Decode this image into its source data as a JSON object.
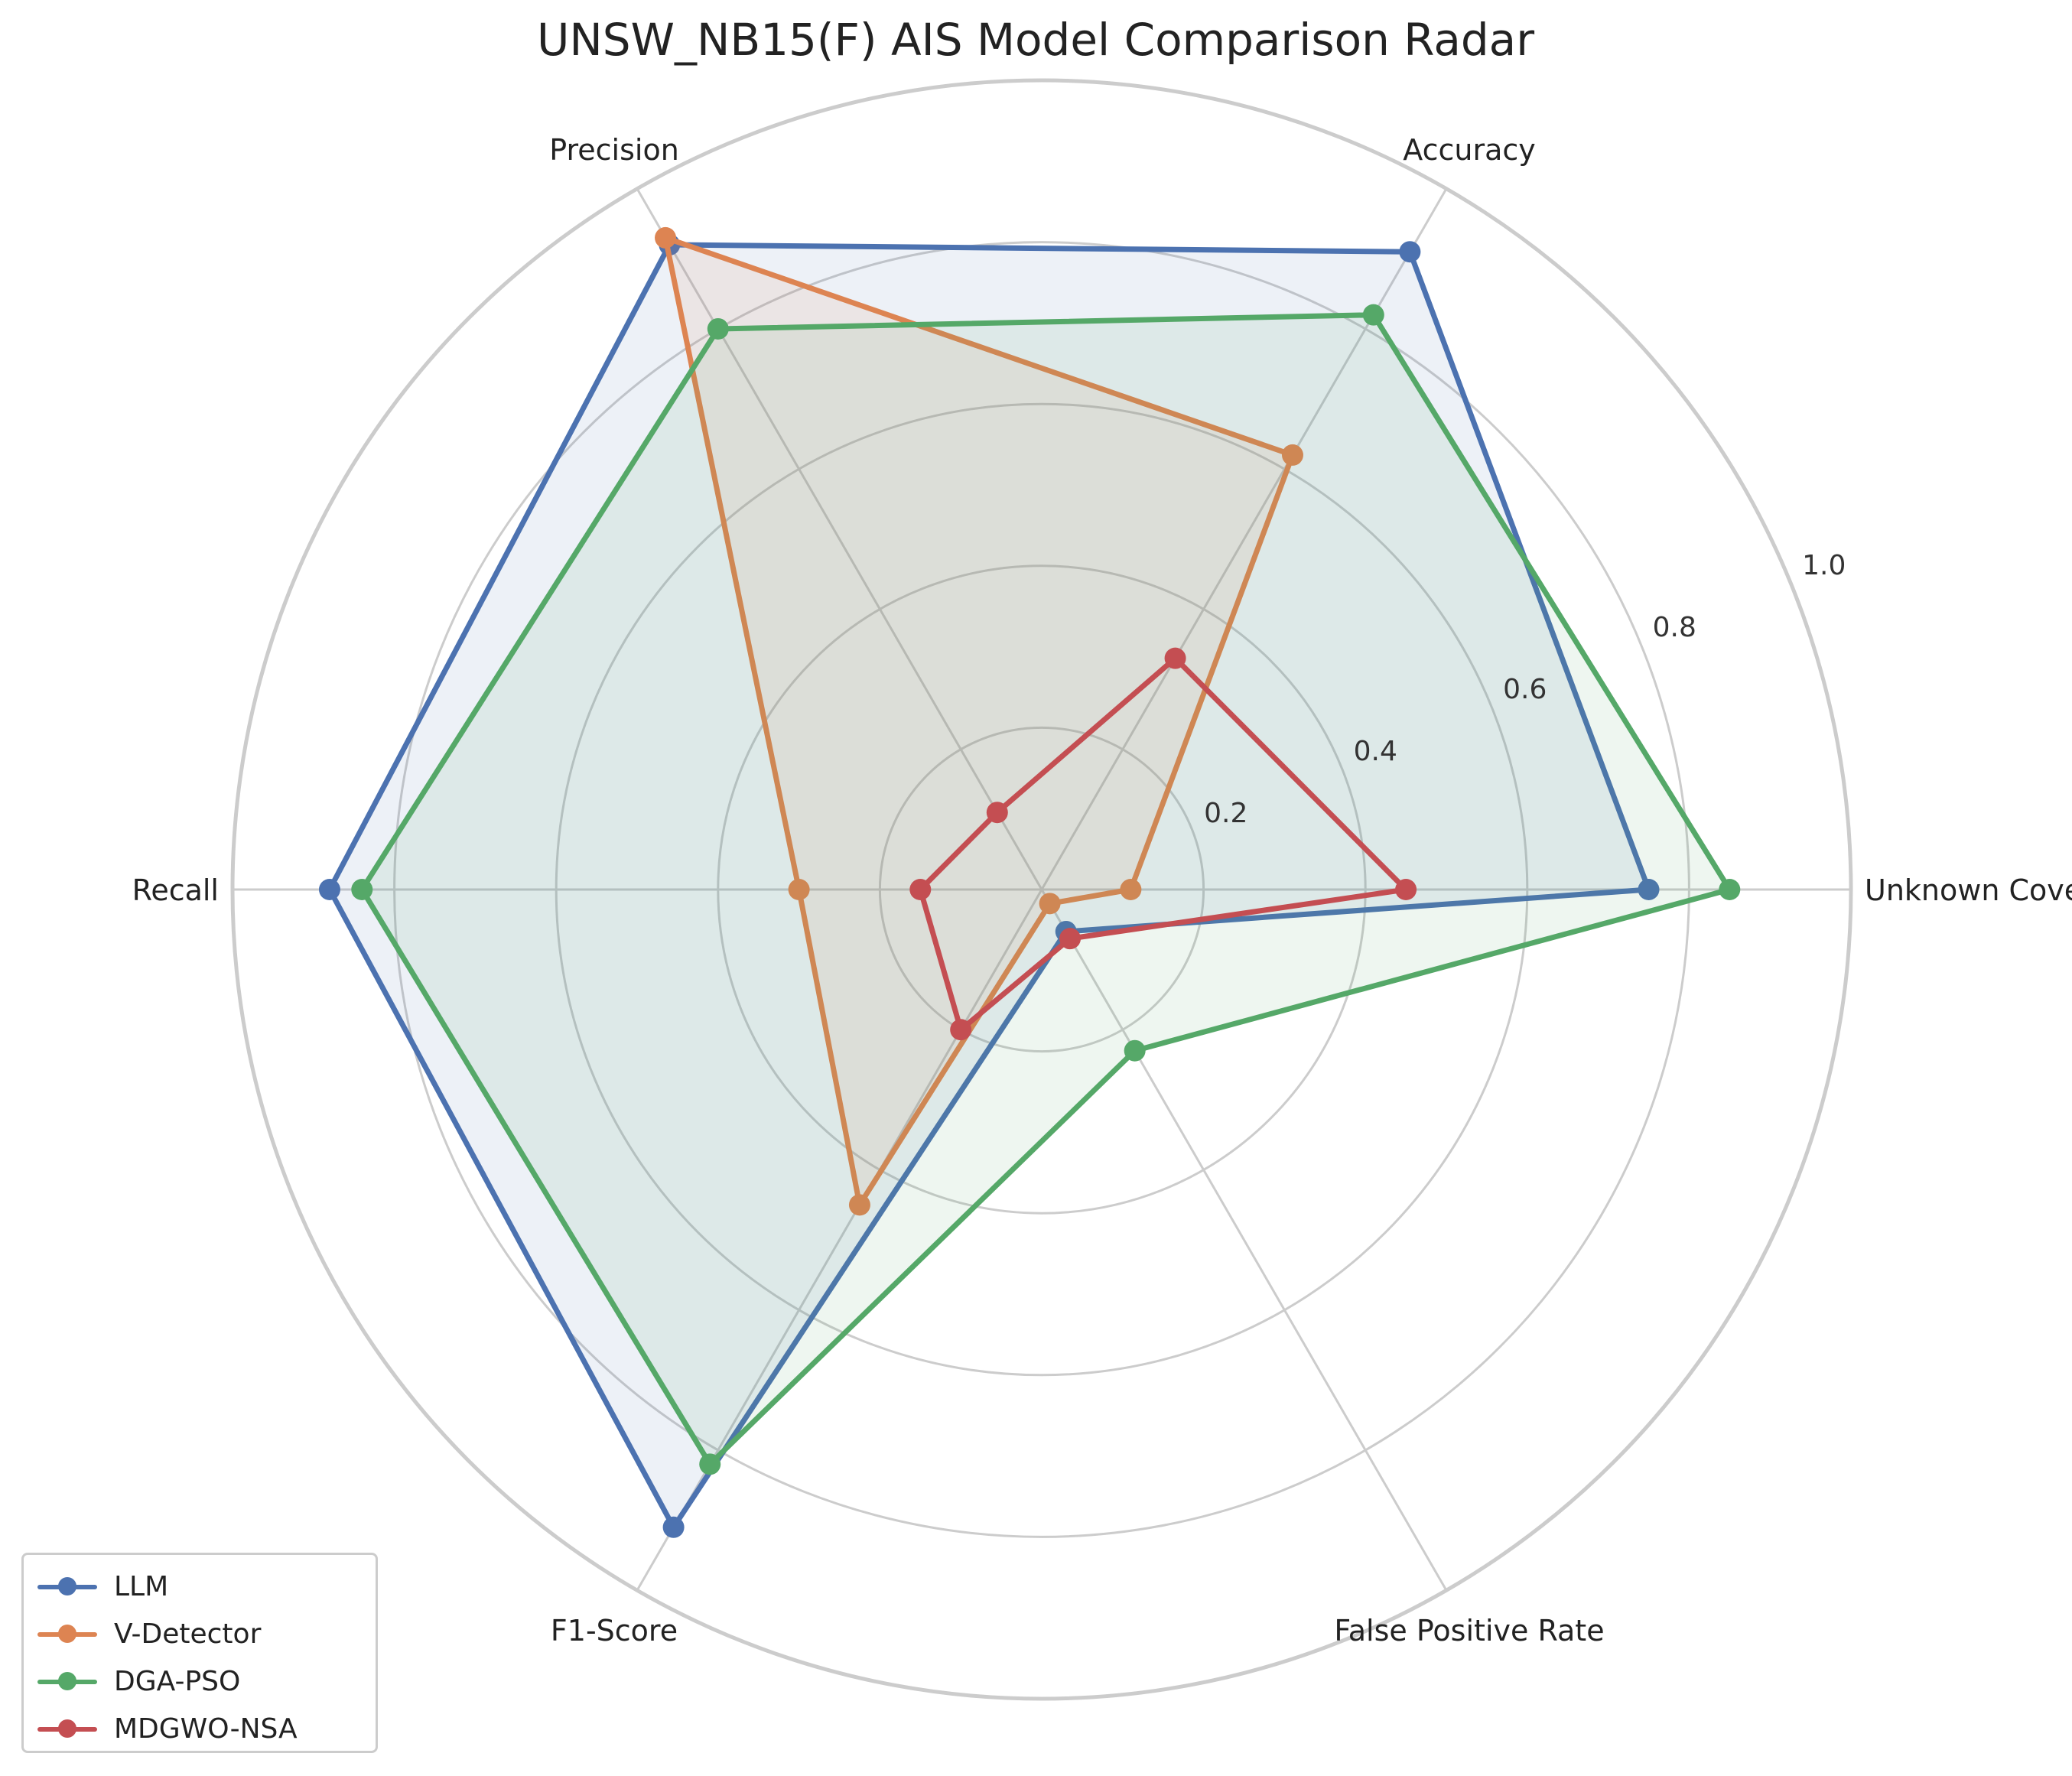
{
  "chart_data": {
    "type": "radar",
    "title": "UNSW_NB15(F) AIS Model Comparison Radar",
    "axes": [
      "Unknown Coverage",
      "Accuracy",
      "Precision",
      "Recall",
      "F1-Score",
      "False Positive Rate"
    ],
    "rlim": [
      0,
      1.0
    ],
    "radial_ticks": [
      0.2,
      0.4,
      0.6,
      0.8,
      1.0
    ],
    "radial_tick_labels": [
      "0.2",
      "0.4",
      "0.6",
      "0.8",
      "1.0"
    ],
    "grid": true,
    "legend_position": "bottom-left",
    "series": [
      {
        "name": "LLM",
        "color": "#4c72b0",
        "fill_opacity": 0.1,
        "values": [
          0.75,
          0.91,
          0.92,
          0.88,
          0.91,
          0.06
        ]
      },
      {
        "name": "V-Detector",
        "color": "#dd8452",
        "fill_opacity": 0.1,
        "values": [
          0.11,
          0.62,
          0.93,
          0.3,
          0.45,
          0.02
        ]
      },
      {
        "name": "DGA-PSO",
        "color": "#55a868",
        "fill_opacity": 0.1,
        "values": [
          0.85,
          0.82,
          0.8,
          0.84,
          0.82,
          0.23
        ]
      },
      {
        "name": "MDGWO-NSA",
        "color": "#c44e52",
        "fill_opacity": 0.0,
        "values": [
          0.45,
          0.33,
          0.11,
          0.15,
          0.2,
          0.07
        ]
      }
    ]
  }
}
